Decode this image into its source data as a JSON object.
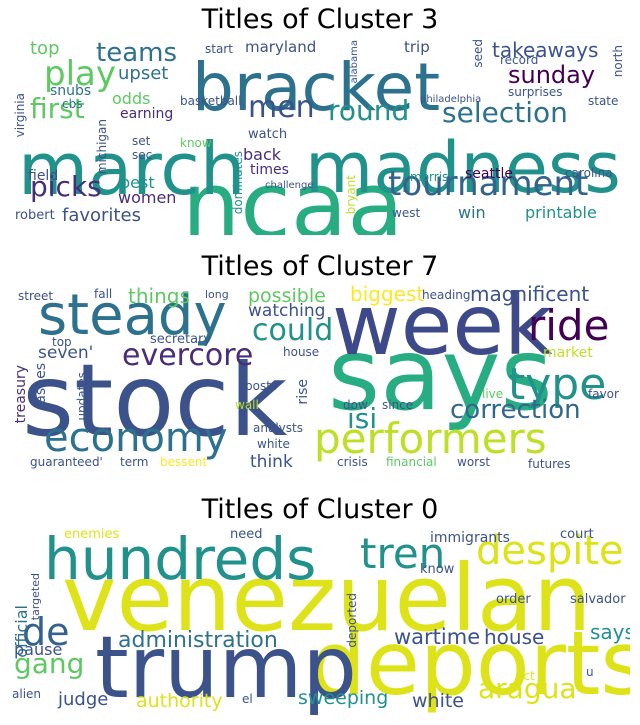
{
  "panels": [
    {
      "title": "Titles of Cluster 3",
      "words": [
        {
          "text": "ncaa",
          "color": "#27ad81"
        },
        {
          "text": "march",
          "color": "#21918c"
        },
        {
          "text": "madness",
          "color": "#21918c"
        },
        {
          "text": "bracket",
          "color": "#2c728e"
        },
        {
          "text": "tournament",
          "color": "#33638d"
        },
        {
          "text": "men",
          "color": "#3b528b"
        },
        {
          "text": "round",
          "color": "#21918c"
        },
        {
          "text": "selection",
          "color": "#2c728e"
        },
        {
          "text": "play",
          "color": "#5ec962"
        },
        {
          "text": "first",
          "color": "#5ec962"
        },
        {
          "text": "teams",
          "color": "#2c728e"
        },
        {
          "text": "picks",
          "color": "#472d7b"
        },
        {
          "text": "sunday",
          "color": "#440154"
        },
        {
          "text": "takeaways",
          "color": "#3b528b"
        },
        {
          "text": "top",
          "color": "#5ec962"
        },
        {
          "text": "upset",
          "color": "#2c728e"
        },
        {
          "text": "odds",
          "color": "#5ec962"
        },
        {
          "text": "favorites",
          "color": "#3b528b"
        },
        {
          "text": "women",
          "color": "#472d7b"
        },
        {
          "text": "best",
          "color": "#21918c"
        },
        {
          "text": "win",
          "color": "#2c728e"
        },
        {
          "text": "printable",
          "color": "#21918c"
        },
        {
          "text": "back",
          "color": "#472d7b"
        },
        {
          "text": "earning",
          "color": "#472d7b"
        },
        {
          "text": "maryland",
          "color": "#3b528b"
        },
        {
          "text": "trip",
          "color": "#3b528b"
        },
        {
          "text": "start",
          "color": "#3b528b"
        },
        {
          "text": "seattle",
          "color": "#440154"
        },
        {
          "text": "carolina",
          "color": "#3b528b"
        },
        {
          "text": "morris",
          "color": "#21918c"
        },
        {
          "text": "times",
          "color": "#472d7b"
        },
        {
          "text": "watch",
          "color": "#3b528b"
        },
        {
          "text": "field",
          "color": "#3b528b"
        },
        {
          "text": "robert",
          "color": "#3b528b"
        },
        {
          "text": "snubs",
          "color": "#2c728e"
        },
        {
          "text": "cbs",
          "color": "#2c728e"
        },
        {
          "text": "virginia",
          "color": "#3b528b"
        },
        {
          "text": "michigan",
          "color": "#3b528b"
        },
        {
          "text": "basketball",
          "color": "#3b528b"
        },
        {
          "text": "set",
          "color": "#3b528b"
        },
        {
          "text": "sec",
          "color": "#3b528b"
        },
        {
          "text": "know",
          "color": "#5ec962"
        },
        {
          "text": "dominates",
          "color": "#21918c"
        },
        {
          "text": "challenge",
          "color": "#3b528b"
        },
        {
          "text": "bryant",
          "color": "#bddf26"
        },
        {
          "text": "west",
          "color": "#3b528b"
        },
        {
          "text": "alabama",
          "color": "#3b528b"
        },
        {
          "text": "seed",
          "color": "#3b528b"
        },
        {
          "text": "record",
          "color": "#3b528b"
        },
        {
          "text": "surprises",
          "color": "#3b528b"
        },
        {
          "text": "philadelphia",
          "color": "#3b528b"
        },
        {
          "text": "state",
          "color": "#3b528b"
        },
        {
          "text": "north",
          "color": "#3b528b"
        }
      ]
    },
    {
      "title": "Titles of Cluster 7",
      "words": [
        {
          "text": "stock",
          "color": "#3b528b"
        },
        {
          "text": "says",
          "color": "#27ad81"
        },
        {
          "text": "week",
          "color": "#3e4989"
        },
        {
          "text": "steady",
          "color": "#2c728e"
        },
        {
          "text": "economy",
          "color": "#2c728e"
        },
        {
          "text": "performers",
          "color": "#bddf26"
        },
        {
          "text": "type",
          "color": "#21918c"
        },
        {
          "text": "ride",
          "color": "#440154"
        },
        {
          "text": "evercore",
          "color": "#472d7b"
        },
        {
          "text": "could",
          "color": "#21918c"
        },
        {
          "text": "correction",
          "color": "#31688e"
        },
        {
          "text": "isi",
          "color": "#21918c"
        },
        {
          "text": "things",
          "color": "#5ec962"
        },
        {
          "text": "possible",
          "color": "#5ec962"
        },
        {
          "text": "biggest",
          "color": "#fde725"
        },
        {
          "text": "magnificent",
          "color": "#3b528b"
        },
        {
          "text": "seven'",
          "color": "#3b528b"
        },
        {
          "text": "treasury",
          "color": "#472d7b"
        },
        {
          "text": "ashes",
          "color": "#3b528b"
        },
        {
          "text": "watching",
          "color": "#3b528b"
        },
        {
          "text": "secretary",
          "color": "#3b528b"
        },
        {
          "text": "market",
          "color": "#bddf26"
        },
        {
          "text": "think",
          "color": "#3b528b"
        },
        {
          "text": "rise",
          "color": "#3b528b"
        },
        {
          "text": "street",
          "color": "#3b528b"
        },
        {
          "text": "fall",
          "color": "#3b528b"
        },
        {
          "text": "top",
          "color": "#3b528b"
        },
        {
          "text": "long",
          "color": "#3b528b"
        },
        {
          "text": "heading",
          "color": "#3b528b"
        },
        {
          "text": "house",
          "color": "#3b528b"
        },
        {
          "text": "posts",
          "color": "#3b528b"
        },
        {
          "text": "wall",
          "color": "#bddf26"
        },
        {
          "text": "updates",
          "color": "#3b528b"
        },
        {
          "text": "analysts",
          "color": "#3b528b"
        },
        {
          "text": "white",
          "color": "#3b528b"
        },
        {
          "text": "dow",
          "color": "#3b528b"
        },
        {
          "text": "since",
          "color": "#3b528b"
        },
        {
          "text": "live",
          "color": "#5ec962"
        },
        {
          "text": "favor",
          "color": "#3b528b"
        },
        {
          "text": "guaranteed'",
          "color": "#3b528b"
        },
        {
          "text": "term",
          "color": "#3b528b"
        },
        {
          "text": "bessent",
          "color": "#fde725"
        },
        {
          "text": "crisis",
          "color": "#3b528b"
        },
        {
          "text": "financial",
          "color": "#5ec962"
        },
        {
          "text": "worst",
          "color": "#3b528b"
        },
        {
          "text": "futures",
          "color": "#3b528b"
        }
      ]
    },
    {
      "title": "Titles of Cluster 0",
      "words": [
        {
          "text": "venezuelan",
          "color": "#dde318"
        },
        {
          "text": "deports",
          "color": "#dde318"
        },
        {
          "text": "trump",
          "color": "#3b528b"
        },
        {
          "text": "hundreds",
          "color": "#21918c"
        },
        {
          "text": "despite",
          "color": "#dde318"
        },
        {
          "text": "tren",
          "color": "#21918c"
        },
        {
          "text": "de",
          "color": "#33638d"
        },
        {
          "text": "gang",
          "color": "#5ec962"
        },
        {
          "text": "administration",
          "color": "#2c728e"
        },
        {
          "text": "aragua",
          "color": "#dde318"
        },
        {
          "text": "wartime",
          "color": "#3b528b"
        },
        {
          "text": "house",
          "color": "#3b528b"
        },
        {
          "text": "says",
          "color": "#21918c"
        },
        {
          "text": "official",
          "color": "#2c728e"
        },
        {
          "text": "pause",
          "color": "#3b528b"
        },
        {
          "text": "judge",
          "color": "#3b528b"
        },
        {
          "text": "authority",
          "color": "#dde318"
        },
        {
          "text": "sweeping",
          "color": "#21918c"
        },
        {
          "text": "white",
          "color": "#3b528b"
        },
        {
          "text": "enemies",
          "color": "#dde318"
        },
        {
          "text": "need",
          "color": "#3b528b"
        },
        {
          "text": "immigrants",
          "color": "#3b528b"
        },
        {
          "text": "court",
          "color": "#3b528b"
        },
        {
          "text": "order",
          "color": "#3b528b"
        },
        {
          "text": "salvador",
          "color": "#3b528b"
        },
        {
          "text": "know",
          "color": "#3b528b"
        },
        {
          "text": "deported",
          "color": "#3b528b"
        },
        {
          "text": "targeted",
          "color": "#3b528b"
        },
        {
          "text": "alien",
          "color": "#3b528b"
        },
        {
          "text": "el",
          "color": "#3b528b"
        },
        {
          "text": "act",
          "color": "#dde318"
        },
        {
          "text": "u",
          "color": "#3b528b"
        }
      ]
    }
  ]
}
